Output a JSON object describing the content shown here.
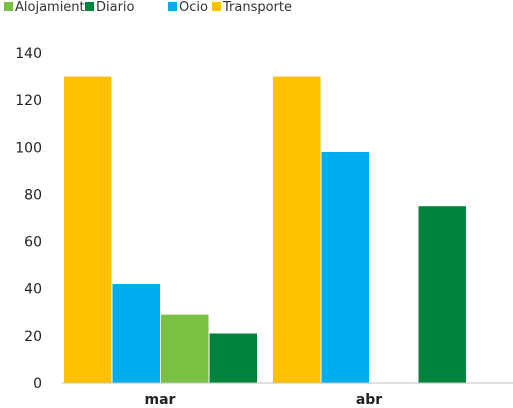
{
  "chart_data": {
    "type": "bar",
    "categories": [
      "mar",
      "abr"
    ],
    "series": [
      {
        "name": "Alojamiento",
        "color": "#7ac143",
        "values": [
          29,
          null
        ]
      },
      {
        "name": "Diario",
        "color": "#00843d",
        "values": [
          21,
          75
        ]
      },
      {
        "name": "Ocio",
        "color": "#00aeef",
        "values": [
          42,
          98
        ]
      },
      {
        "name": "Transporte",
        "color": "#ffc000",
        "values": [
          130,
          130
        ]
      }
    ],
    "draw_order": [
      "Transporte",
      "Ocio",
      "Alojamiento",
      "Diario"
    ],
    "ylim": [
      0,
      140
    ],
    "yticks": [
      0,
      20,
      40,
      60,
      80,
      100,
      120,
      140
    ],
    "legend_position": "top-left",
    "grid": false
  }
}
